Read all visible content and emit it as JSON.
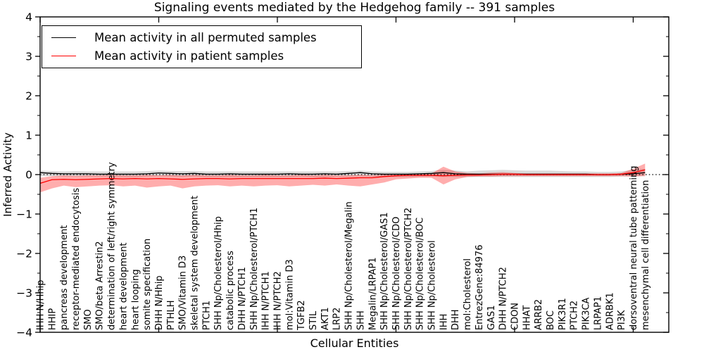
{
  "figure": {
    "title": "Signaling events mediated by the Hedgehog family -- 391 samples",
    "xlabel": "Cellular Entities",
    "ylabel": "Inferred Activity"
  },
  "legend": {
    "entries": [
      {
        "label": "Mean activity in all permuted samples",
        "color": "#000000"
      },
      {
        "label": "Mean activity in patient samples",
        "color": "#ff0000"
      }
    ]
  },
  "chart_data": {
    "type": "line",
    "title": "Signaling events mediated by the Hedgehog family -- 391 samples",
    "xlabel": "Cellular Entities",
    "ylabel": "Inferred Activity",
    "ylim": [
      -4,
      4
    ],
    "yticks": [
      -4,
      -3,
      -2,
      -1,
      0,
      1,
      2,
      3,
      4
    ],
    "y_minor_step": 0.5,
    "xtick_interval": 10,
    "grid": false,
    "legend_position": "upper left",
    "zero_line": {
      "y": 0,
      "style": "dotted",
      "color": "#000000"
    },
    "categories": [
      "IHH N/Hhip",
      "HHIP",
      "pancreas development",
      "receptor-mediated endocytosis",
      "SMO",
      "SMO/beta Arrestin2",
      "determination of left/right symmetry",
      "heart development",
      "heart looping",
      "somite specification",
      "DHH N/Hhip",
      "PTHLH",
      "SMO/Vitamin D3",
      "skeletal system development",
      "PTCH1",
      "SHH Np/Cholesterol/Hhip",
      "catabolic process",
      "DHH N/PTCH1",
      "SHH Np/Cholesterol/PTCH1",
      "IHH N/PTCH1",
      "IHH N/PTCH2",
      "mol:Vitamin D3",
      "TGFB2",
      "STIL",
      "AKT1",
      "LRP2",
      "SHH Np/Cholesterol/Megalin",
      "SHH",
      "Megalin/LRPAP1",
      "SHH Np/Cholesterol/GAS1",
      "SHH Np/Cholesterol/CDO",
      "SHH Np/Cholesterol/PTCH2",
      "SHH Np/Cholesterol/BOC",
      "SHH Np/Cholesterol",
      "IHH",
      "DHH",
      "mol:Cholesterol",
      "EntrezGene:84976",
      "GAS1",
      "DHH N/PTCH2",
      "CDON",
      "HHAT",
      "ARRB2",
      "BOC",
      "PIK3R1",
      "PTCH2",
      "PIK3CA",
      "LRPAP1",
      "ADRBK1",
      "PI3K",
      "dorsoventral neural tube patterning",
      "mesenchymal cell differentiation"
    ],
    "series": [
      {
        "name": "Mean activity in all permuted samples",
        "color": "#000000",
        "values": [
          0.05,
          0.03,
          0.02,
          0.02,
          0.02,
          0.01,
          0.01,
          0.01,
          0.01,
          0.02,
          0.04,
          0.03,
          0.02,
          0.03,
          0.01,
          0.01,
          0.02,
          0.01,
          0.01,
          0.01,
          0.01,
          0.02,
          0.01,
          0.01,
          0.02,
          0.01,
          0.03,
          0.05,
          0.02,
          0.01,
          0.01,
          0.01,
          0.02,
          0.03,
          0.05,
          0.02,
          0.01,
          0.01,
          0.01,
          0.01,
          0.01,
          0.01,
          0.01,
          0.01,
          0.01,
          0.01,
          0.01,
          0.0,
          0.0,
          0.01,
          0.02,
          0.05
        ]
      },
      {
        "name": "Mean activity in patient samples",
        "color": "#ff0000",
        "values": [
          -0.22,
          -0.13,
          -0.12,
          -0.13,
          -0.12,
          -0.11,
          -0.1,
          -0.11,
          -0.1,
          -0.11,
          -0.1,
          -0.11,
          -0.12,
          -0.11,
          -0.1,
          -0.1,
          -0.11,
          -0.1,
          -0.1,
          -0.1,
          -0.1,
          -0.1,
          -0.1,
          -0.1,
          -0.09,
          -0.1,
          -0.09,
          -0.08,
          -0.08,
          -0.05,
          -0.03,
          -0.02,
          -0.02,
          -0.02,
          -0.03,
          -0.02,
          -0.01,
          -0.01,
          0.0,
          0.01,
          0.01,
          0.0,
          0.0,
          0.0,
          0.0,
          0.0,
          0.0,
          0.0,
          0.0,
          0.01,
          0.05,
          0.12
        ]
      }
    ],
    "bands": [
      {
        "name": "permuted samples spread",
        "color": "#000000",
        "opacity": 0.14,
        "upper": [
          0.1,
          0.09,
          0.08,
          0.09,
          0.08,
          0.08,
          0.08,
          0.08,
          0.08,
          0.09,
          0.1,
          0.09,
          0.09,
          0.09,
          0.08,
          0.08,
          0.08,
          0.08,
          0.08,
          0.08,
          0.08,
          0.08,
          0.08,
          0.08,
          0.08,
          0.08,
          0.09,
          0.1,
          0.08,
          0.07,
          0.07,
          0.07,
          0.08,
          0.09,
          0.12,
          0.1,
          0.08,
          0.1,
          0.11,
          0.12,
          0.11,
          0.1,
          0.1,
          0.1,
          0.09,
          0.08,
          0.08,
          0.07,
          0.07,
          0.08,
          0.12,
          0.15
        ],
        "lower": [
          -0.04,
          -0.04,
          -0.05,
          -0.05,
          -0.05,
          -0.05,
          -0.05,
          -0.06,
          -0.06,
          -0.05,
          -0.04,
          -0.05,
          -0.06,
          -0.05,
          -0.06,
          -0.06,
          -0.06,
          -0.06,
          -0.06,
          -0.06,
          -0.06,
          -0.06,
          -0.05,
          -0.06,
          -0.06,
          -0.05,
          -0.05,
          -0.04,
          -0.05,
          -0.06,
          -0.06,
          -0.06,
          -0.05,
          -0.05,
          -0.06,
          -0.06,
          -0.06,
          -0.06,
          -0.06,
          -0.06,
          -0.06,
          -0.06,
          -0.06,
          -0.06,
          -0.06,
          -0.06,
          -0.06,
          -0.06,
          -0.06,
          -0.05,
          -0.04,
          -0.02
        ]
      },
      {
        "name": "patient samples spread",
        "color": "#ff0000",
        "opacity": 0.32,
        "upper": [
          -0.08,
          -0.04,
          -0.02,
          -0.03,
          -0.02,
          -0.02,
          -0.01,
          -0.02,
          -0.02,
          -0.01,
          -0.02,
          -0.01,
          -0.02,
          -0.01,
          -0.02,
          -0.02,
          -0.01,
          -0.02,
          -0.02,
          -0.01,
          -0.02,
          -0.02,
          -0.01,
          -0.02,
          -0.01,
          -0.02,
          -0.02,
          -0.01,
          -0.02,
          0.0,
          0.01,
          0.02,
          0.02,
          0.03,
          0.2,
          0.08,
          0.04,
          0.03,
          0.05,
          0.06,
          0.04,
          0.03,
          0.03,
          0.03,
          0.03,
          0.03,
          0.03,
          0.03,
          0.03,
          0.04,
          0.15,
          0.28
        ],
        "lower": [
          -0.45,
          -0.35,
          -0.28,
          -0.32,
          -0.3,
          -0.28,
          -0.27,
          -0.3,
          -0.28,
          -0.33,
          -0.3,
          -0.28,
          -0.35,
          -0.3,
          -0.28,
          -0.27,
          -0.3,
          -0.28,
          -0.3,
          -0.28,
          -0.27,
          -0.3,
          -0.28,
          -0.26,
          -0.28,
          -0.25,
          -0.28,
          -0.3,
          -0.25,
          -0.2,
          -0.12,
          -0.1,
          -0.08,
          -0.08,
          -0.25,
          -0.12,
          -0.06,
          -0.05,
          -0.05,
          -0.04,
          -0.04,
          -0.04,
          -0.04,
          -0.04,
          -0.04,
          -0.04,
          -0.04,
          -0.04,
          -0.04,
          -0.04,
          -0.05,
          -0.04
        ]
      }
    ]
  }
}
